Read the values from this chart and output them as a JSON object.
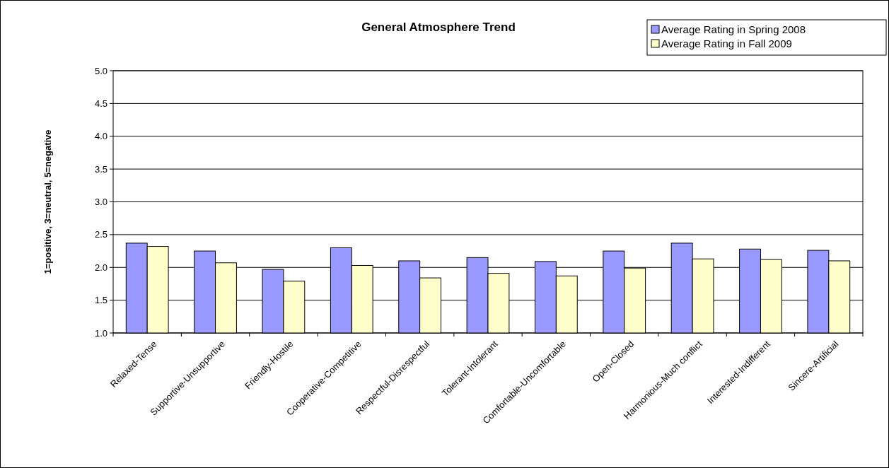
{
  "chart_data": {
    "type": "bar",
    "title": "General Atmosphere Trend",
    "ylabel": "1=positive, 3=neutral, 5=negative",
    "categories": [
      "Relaxed-Tense",
      "Supportive-Unsupportive",
      "Friendly-Hostile",
      "Cooperative-Competitive",
      "Respectful-Disrespectful",
      "Tolerant-Intolerant",
      "Comfortable-Uncomfortable",
      "Open-Closed",
      "Harmonious-Much conflict",
      "Interested-Indifferent",
      "Sincere-Artificial"
    ],
    "series": [
      {
        "name": "Average Rating in Spring 2008",
        "color": "#9999ff",
        "values": [
          2.37,
          2.25,
          1.97,
          2.3,
          2.1,
          2.15,
          2.09,
          2.25,
          2.37,
          2.28,
          2.26
        ]
      },
      {
        "name": "Average Rating in Fall 2009",
        "color": "#ffffcc",
        "values": [
          2.32,
          2.07,
          1.79,
          2.03,
          1.84,
          1.91,
          1.87,
          1.99,
          2.13,
          2.12,
          2.1
        ]
      }
    ],
    "ylim": [
      1,
      5
    ],
    "yticks": [
      {
        "value": 1,
        "label": "1.0"
      },
      {
        "value": 1.5,
        "label": "1.5"
      },
      {
        "value": 2,
        "label": "2.0"
      },
      {
        "value": 2.5,
        "label": "2.5"
      },
      {
        "value": 3,
        "label": "3.0"
      },
      {
        "value": 3.5,
        "label": "3.5"
      },
      {
        "value": 4,
        "label": "4.0"
      },
      {
        "value": 4.5,
        "label": "4.5"
      },
      {
        "value": 5,
        "label": "5.0"
      }
    ],
    "grid": "y",
    "legend": "top right"
  }
}
